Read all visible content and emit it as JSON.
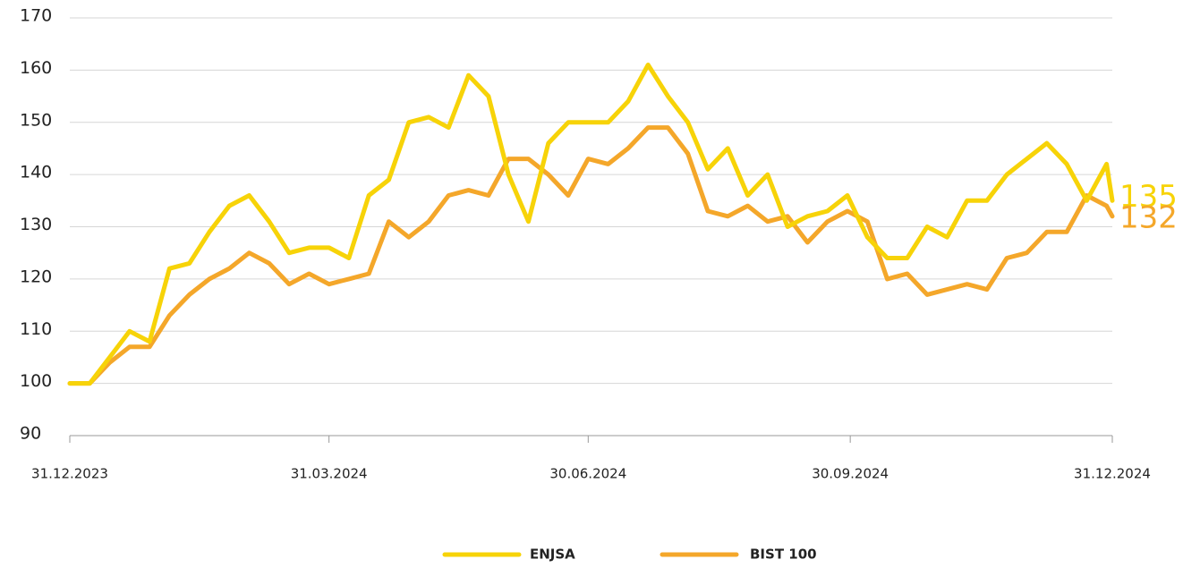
{
  "chart_data": {
    "type": "line",
    "x": [
      "2023-12-31",
      "2024-01-07",
      "2024-01-14",
      "2024-01-21",
      "2024-01-28",
      "2024-02-04",
      "2024-02-11",
      "2024-02-18",
      "2024-02-25",
      "2024-03-03",
      "2024-03-10",
      "2024-03-17",
      "2024-03-24",
      "2024-03-31",
      "2024-04-07",
      "2024-04-14",
      "2024-04-21",
      "2024-04-28",
      "2024-05-05",
      "2024-05-12",
      "2024-05-19",
      "2024-05-26",
      "2024-06-02",
      "2024-06-09",
      "2024-06-16",
      "2024-06-23",
      "2024-06-30",
      "2024-07-07",
      "2024-07-14",
      "2024-07-21",
      "2024-07-28",
      "2024-08-04",
      "2024-08-11",
      "2024-08-18",
      "2024-08-25",
      "2024-09-01",
      "2024-09-08",
      "2024-09-15",
      "2024-09-22",
      "2024-09-29",
      "2024-10-06",
      "2024-10-13",
      "2024-10-20",
      "2024-10-27",
      "2024-11-03",
      "2024-11-10",
      "2024-11-17",
      "2024-11-24",
      "2024-12-01",
      "2024-12-08",
      "2024-12-15",
      "2024-12-22",
      "2024-12-29",
      "2024-12-31"
    ],
    "series": [
      {
        "name": "ENJSA",
        "color": "#f7d308",
        "values": [
          100,
          100,
          105,
          110,
          108,
          122,
          123,
          129,
          134,
          136,
          131,
          125,
          126,
          126,
          124,
          136,
          139,
          150,
          151,
          149,
          159,
          155,
          140,
          131,
          146,
          150,
          150,
          150,
          154,
          161,
          155,
          150,
          141,
          145,
          136,
          140,
          130,
          132,
          133,
          136,
          128,
          124,
          124,
          130,
          128,
          135,
          135,
          140,
          143,
          146,
          142,
          135,
          142,
          135
        ]
      },
      {
        "name": "BIST 100",
        "color": "#f4a72a",
        "values": [
          100,
          100,
          104,
          107,
          107,
          113,
          117,
          120,
          122,
          125,
          123,
          119,
          121,
          119,
          120,
          121,
          131,
          128,
          131,
          136,
          137,
          136,
          143,
          143,
          140,
          136,
          143,
          142,
          145,
          149,
          149,
          144,
          133,
          132,
          134,
          131,
          132,
          127,
          131,
          133,
          131,
          120,
          121,
          117,
          118,
          119,
          118,
          124,
          125,
          129,
          129,
          136,
          134,
          132
        ]
      }
    ],
    "xticks": [
      {
        "value": "2023-12-31",
        "label": "31.12.2023"
      },
      {
        "value": "2024-03-31",
        "label": "31.03.2024"
      },
      {
        "value": "2024-06-30",
        "label": "30.06.2024"
      },
      {
        "value": "2024-09-30",
        "label": "30.09.2024"
      },
      {
        "value": "2024-12-31",
        "label": "31.12.2024"
      }
    ],
    "xlim": [
      "2023-12-31",
      "2024-12-31"
    ],
    "ylim": [
      90,
      170
    ],
    "yticks": [
      90,
      100,
      110,
      120,
      130,
      140,
      150,
      160,
      170
    ],
    "grid": true,
    "legend": "bottom"
  }
}
